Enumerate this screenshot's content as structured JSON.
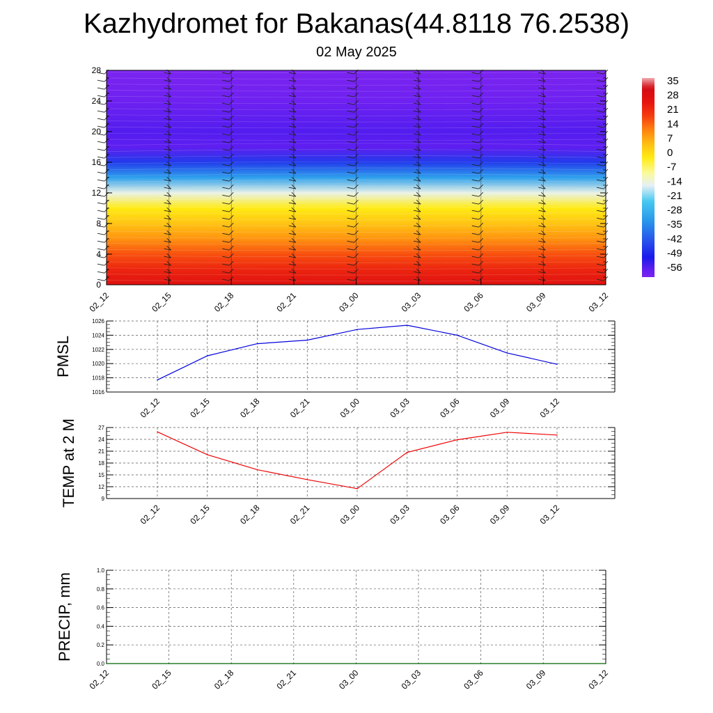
{
  "header": {
    "title": "Kazhydromet for Bakanas(44.8118 76.2538)",
    "date": "02 May 2025"
  },
  "chart_data": [
    {
      "type": "heatmap",
      "name": "vertical-temperature-cross-section",
      "x_ticks": [
        "02_12",
        "02_15",
        "02_18",
        "02_21",
        "03_00",
        "03_03",
        "03_06",
        "03_09",
        "03_12"
      ],
      "y_ticks": [
        0,
        4,
        8,
        12,
        16,
        20,
        24,
        28
      ],
      "ylim": [
        0,
        28
      ],
      "colorbar": {
        "labels": [
          35,
          28,
          21,
          14,
          7,
          0,
          -7,
          -14,
          -21,
          -28,
          -35,
          -42,
          -49,
          -56
        ],
        "range": [
          -60,
          40
        ]
      },
      "approx_values_by_height": [
        {
          "height": 0,
          "value": 30
        },
        {
          "height": 2,
          "value": 25
        },
        {
          "height": 4,
          "value": 19
        },
        {
          "height": 6,
          "value": 12
        },
        {
          "height": 8,
          "value": 6
        },
        {
          "height": 10,
          "value": 0
        },
        {
          "height": 12,
          "value": -13
        },
        {
          "height": 14,
          "value": -30
        },
        {
          "height": 16,
          "value": -45
        },
        {
          "height": 18,
          "value": -56
        },
        {
          "height": 20,
          "value": -55
        },
        {
          "height": 24,
          "value": -58
        },
        {
          "height": 28,
          "value": -60
        }
      ]
    },
    {
      "type": "line",
      "name": "pmsl",
      "ylabel": "PMSL",
      "categories": [
        "02_12",
        "02_15",
        "02_18",
        "02_21",
        "03_00",
        "03_03",
        "03_06",
        "03_09",
        "03_12"
      ],
      "values": [
        1017.7,
        1021.1,
        1022.8,
        1023.3,
        1024.8,
        1025.4,
        1024.0,
        1021.5,
        1019.9
      ],
      "ylim": [
        1016,
        1026
      ],
      "y_ticks": [
        1016,
        1018,
        1020,
        1022,
        1024,
        1026
      ],
      "color": "#0000dd",
      "grid": true
    },
    {
      "type": "line",
      "name": "temp-2m",
      "ylabel": "TEMP at 2 M",
      "categories": [
        "02_12",
        "02_15",
        "02_18",
        "02_21",
        "03_00",
        "03_03",
        "03_06",
        "03_09",
        "03_12"
      ],
      "values": [
        25.9,
        20.1,
        16.3,
        13.8,
        11.5,
        20.7,
        23.9,
        25.8,
        25.1
      ],
      "ylim": [
        9,
        27
      ],
      "y_ticks": [
        9,
        12,
        15,
        18,
        21,
        24,
        27
      ],
      "color": "#ee0000",
      "grid": true
    },
    {
      "type": "line",
      "name": "precip",
      "ylabel": "PRECIP, mm",
      "categories": [
        "02_12",
        "02_15",
        "02_18",
        "02_21",
        "03_00",
        "03_03",
        "03_06",
        "03_09",
        "03_12"
      ],
      "values": [
        0,
        0,
        0,
        0,
        0,
        0,
        0,
        0,
        0
      ],
      "ylim": [
        0,
        1
      ],
      "y_ticks": [
        "0.0",
        "0.2",
        "0.4",
        "0.6",
        "0.8",
        "1.0"
      ],
      "color": "#006400",
      "grid": true
    }
  ]
}
